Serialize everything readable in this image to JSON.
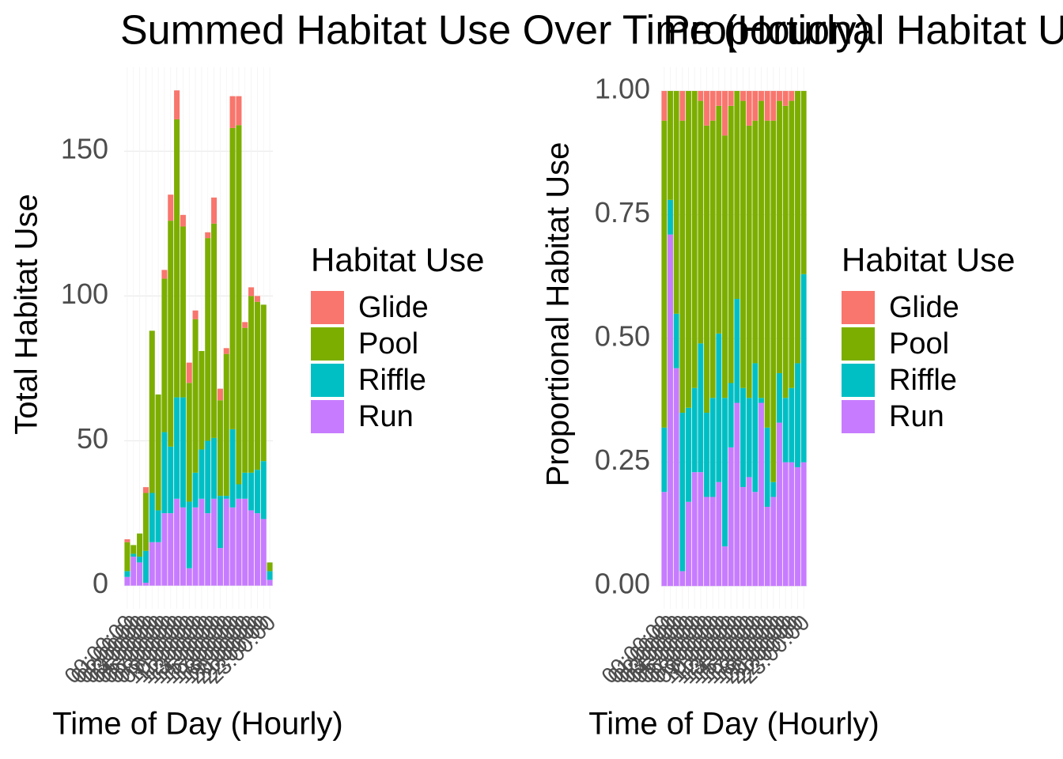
{
  "chart_data": [
    {
      "type": "bar",
      "stacked": true,
      "title": "Summed Habitat Use Over Time (Hourly)",
      "xlabel": "Time of Day (Hourly)",
      "ylabel": "Total Habitat Use",
      "legend_title": "Habitat Use",
      "categories": [
        "00:00:00",
        "01:00:00",
        "02:00:00",
        "03:00:00",
        "04:00:00",
        "05:00:00",
        "06:00:00",
        "07:00:00",
        "08:00:00",
        "09:00:00",
        "10:00:00",
        "11:00:00",
        "12:00:00",
        "13:00:00",
        "14:00:00",
        "15:00:00",
        "16:00:00",
        "17:00:00",
        "18:00:00",
        "19:00:00",
        "20:00:00",
        "21:00:00",
        "22:00:00",
        "23:00:00"
      ],
      "series": [
        {
          "name": "Glide",
          "color": "#F8766D",
          "values": [
            1,
            0,
            0,
            2,
            0,
            0,
            3,
            9,
            10,
            4,
            7,
            3,
            0,
            2,
            9,
            4,
            2,
            11,
            10,
            2,
            3,
            2,
            0,
            0
          ]
        },
        {
          "name": "Pool",
          "color": "#7CAE00",
          "values": [
            10,
            3,
            8,
            20,
            56,
            40,
            53,
            78,
            96,
            59,
            41,
            53,
            34,
            70,
            74,
            33,
            49,
            104,
            124,
            50,
            61,
            58,
            54,
            3
          ]
        },
        {
          "name": "Riffle",
          "color": "#00BFC4",
          "values": [
            2,
            1,
            2,
            11,
            17,
            11,
            28,
            23,
            35,
            38,
            23,
            12,
            17,
            25,
            21,
            18,
            1,
            27,
            5,
            9,
            13,
            15,
            20,
            3
          ]
        },
        {
          "name": "Run",
          "color": "#C77CFF",
          "values": [
            3,
            10,
            8,
            1,
            15,
            15,
            25,
            25,
            30,
            27,
            6,
            27,
            30,
            25,
            30,
            13,
            30,
            27,
            30,
            30,
            26,
            25,
            23,
            2
          ]
        }
      ],
      "ylim": [
        -8,
        179
      ],
      "yticks": [
        0,
        50,
        100,
        150
      ],
      "grid": true
    },
    {
      "type": "bar",
      "stacked": true,
      "title": "Proportional Habitat Use Over Time (Hourly)",
      "xlabel": "Time of Day (Hourly)",
      "ylabel": "Proportional Habitat Use",
      "legend_title": "Habitat Use",
      "categories": [
        "00:00:00",
        "01:00:00",
        "02:00:00",
        "03:00:00",
        "04:00:00",
        "05:00:00",
        "06:00:00",
        "07:00:00",
        "08:00:00",
        "09:00:00",
        "10:00:00",
        "11:00:00",
        "12:00:00",
        "13:00:00",
        "14:00:00",
        "15:00:00",
        "16:00:00",
        "17:00:00",
        "18:00:00",
        "19:00:00",
        "20:00:00",
        "21:00:00",
        "22:00:00",
        "23:00:00"
      ],
      "series": [
        {
          "name": "Glide",
          "color": "#F8766D",
          "values": [
            0.06,
            0,
            0,
            0.06,
            0,
            0,
            0.02,
            0.07,
            0.06,
            0.03,
            0.09,
            0.03,
            0,
            0.02,
            0.07,
            0.06,
            0.02,
            0.06,
            0.06,
            0.02,
            0.03,
            0.02,
            0,
            0
          ]
        },
        {
          "name": "Pool",
          "color": "#7CAE00",
          "values": [
            0.62,
            0.22,
            0.45,
            0.59,
            0.64,
            0.6,
            0.49,
            0.58,
            0.56,
            0.46,
            0.53,
            0.56,
            0.42,
            0.58,
            0.55,
            0.49,
            0.6,
            0.62,
            0.73,
            0.55,
            0.59,
            0.58,
            0.55,
            0.37
          ]
        },
        {
          "name": "Riffle",
          "color": "#00BFC4",
          "values": [
            0.13,
            0.07,
            0.11,
            0.32,
            0.19,
            0.17,
            0.26,
            0.17,
            0.2,
            0.3,
            0.3,
            0.13,
            0.21,
            0.2,
            0.16,
            0.26,
            0.01,
            0.16,
            0.03,
            0.1,
            0.13,
            0.15,
            0.21,
            0.38
          ]
        },
        {
          "name": "Run",
          "color": "#C77CFF",
          "values": [
            0.19,
            0.71,
            0.44,
            0.03,
            0.17,
            0.23,
            0.23,
            0.18,
            0.18,
            0.21,
            0.08,
            0.28,
            0.37,
            0.2,
            0.22,
            0.19,
            0.37,
            0.16,
            0.18,
            0.33,
            0.25,
            0.25,
            0.24,
            0.25
          ]
        }
      ],
      "ylim": [
        -0.046,
        1.048
      ],
      "yticks": [
        {
          "value": 0,
          "label": "0.00"
        },
        {
          "value": 0.25,
          "label": "0.25"
        },
        {
          "value": 0.5,
          "label": "0.50"
        },
        {
          "value": 0.75,
          "label": "0.75"
        },
        {
          "value": 1,
          "label": "1.00"
        }
      ],
      "grid": true
    }
  ]
}
